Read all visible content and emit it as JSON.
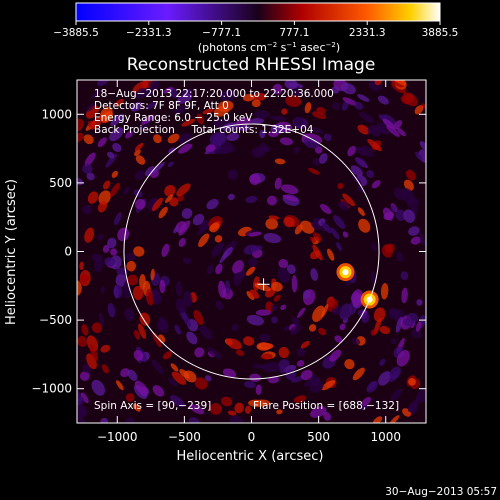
{
  "chart_data": {
    "type": "heatmap",
    "title": "Reconstructed RHESSI Image",
    "xlabel": "Heliocentric X (arcsec)",
    "ylabel": "Heliocentric Y (arcsec)",
    "xlim": [
      -1300,
      1300
    ],
    "ylim": [
      -1250,
      1250
    ],
    "x_ticks": [
      -1000,
      -500,
      0,
      500,
      1000
    ],
    "y_ticks": [
      -1000,
      -500,
      0,
      500,
      1000
    ],
    "x_tick_labels": [
      "−1000",
      "−500",
      "0",
      "500",
      "1000"
    ],
    "y_tick_labels": [
      "−1000",
      "−500",
      "0",
      "500",
      "1000"
    ],
    "colorbar": {
      "min": -3885.5,
      "max": 3885.5,
      "tick_values": [
        -3885.5,
        -2331.3,
        -777.1,
        777.1,
        2331.3,
        3885.5
      ],
      "tick_labels": [
        "−3885.5",
        "−2331.3",
        "−777.1",
        "777.1",
        "2331.3",
        "3885.5"
      ],
      "units_main": "(photons cm",
      "units_sup1": "−2",
      "units_mid": " s",
      "units_sup2": "−1",
      "units_end": " asec",
      "units_sup3": "−2",
      "units_close": ")"
    },
    "info_lines": [
      "18−Aug−2013 22:17:20.000 to 22:20:36.000",
      "Detectors: 7F 8F 9F, Att 0",
      "Energy Range: 6.0 − 25.0 keV",
      "Back Projection     Total counts: 1.32E+04"
    ],
    "spin_axis": "Spin Axis = [90,−239]",
    "flare_position_text": "Flare Position = [688,−132]",
    "flare_position": [
      688,
      -132
    ],
    "solar_radius_arcsec": 950,
    "disk_center": [
      0,
      0
    ],
    "spin_axis_center": [
      90,
      -239
    ],
    "bright_sources": [
      {
        "x": 700,
        "y": -150,
        "intensity": 3885
      },
      {
        "x": 880,
        "y": -350,
        "intensity": 3300
      }
    ],
    "grid": false
  },
  "footer": {
    "date": "30−Aug−2013 05:57"
  },
  "colors": {
    "background": "#000000",
    "text": "#ffffff",
    "limb": "#ffffff"
  }
}
